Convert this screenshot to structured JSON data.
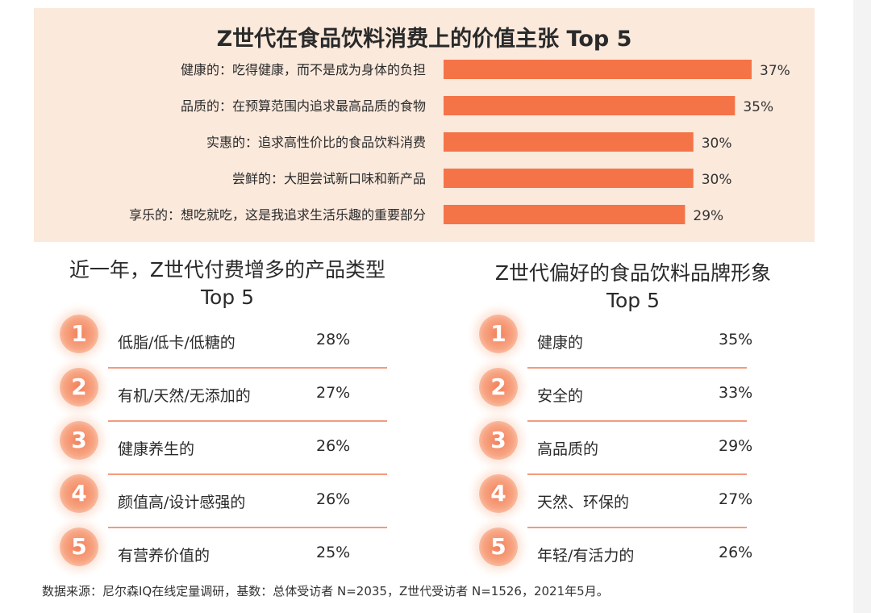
{
  "chart_data": [
    {
      "type": "bar",
      "orientation": "horizontal",
      "title": "Z世代在食品饮料消费上的价值主张 Top 5",
      "categories": [
        "健康的：吃得健康，而不是成为身体的负担",
        "品质的：在预算范围内追求最高品质的食物",
        "实惠的：追求高性价比的食品饮料消费",
        "尝鲜的：大胆尝试新口味和新产品",
        "享乐的：想吃就吃，这是我追求生活乐趣的重要部分"
      ],
      "values": [
        37,
        35,
        30,
        30,
        29
      ],
      "value_labels": [
        "37%",
        "35%",
        "30%",
        "30%",
        "29%"
      ],
      "xlim": [
        0,
        40
      ],
      "bar_color": "#f47448",
      "grid": false
    },
    {
      "type": "table",
      "title_line1": "近一年，Z世代付费增多的产品类型",
      "title_line2": "Top 5",
      "ranks": [
        "1",
        "2",
        "3",
        "4",
        "5"
      ],
      "categories": [
        "低脂/低卡/低糖的",
        "有机/天然/无添加的",
        "健康养生的",
        "颜值高/设计感强的",
        "有营养价值的"
      ],
      "values": [
        28,
        27,
        26,
        26,
        25
      ],
      "value_labels": [
        "28%",
        "27%",
        "26%",
        "26%",
        "25%"
      ]
    },
    {
      "type": "table",
      "title_line1": "Z世代偏好的食品饮料品牌形象",
      "title_line2": "Top 5",
      "ranks": [
        "1",
        "2",
        "3",
        "4",
        "5"
      ],
      "categories": [
        "健康的",
        "安全的",
        "高品质的",
        "天然、环保的",
        "年轻/有活力的"
      ],
      "values": [
        35,
        33,
        29,
        27,
        26
      ],
      "value_labels": [
        "35%",
        "33%",
        "29%",
        "27%",
        "26%"
      ]
    }
  ],
  "source_note": "数据来源：尼尔森IQ在线定量调研，基数：总体受访者 N=2035，Z世代受访者 N=1526，2021年5月。",
  "colors": {
    "accent": "#f47448",
    "panel_bg": "#fbe9dc",
    "line": "#f39b7c"
  }
}
